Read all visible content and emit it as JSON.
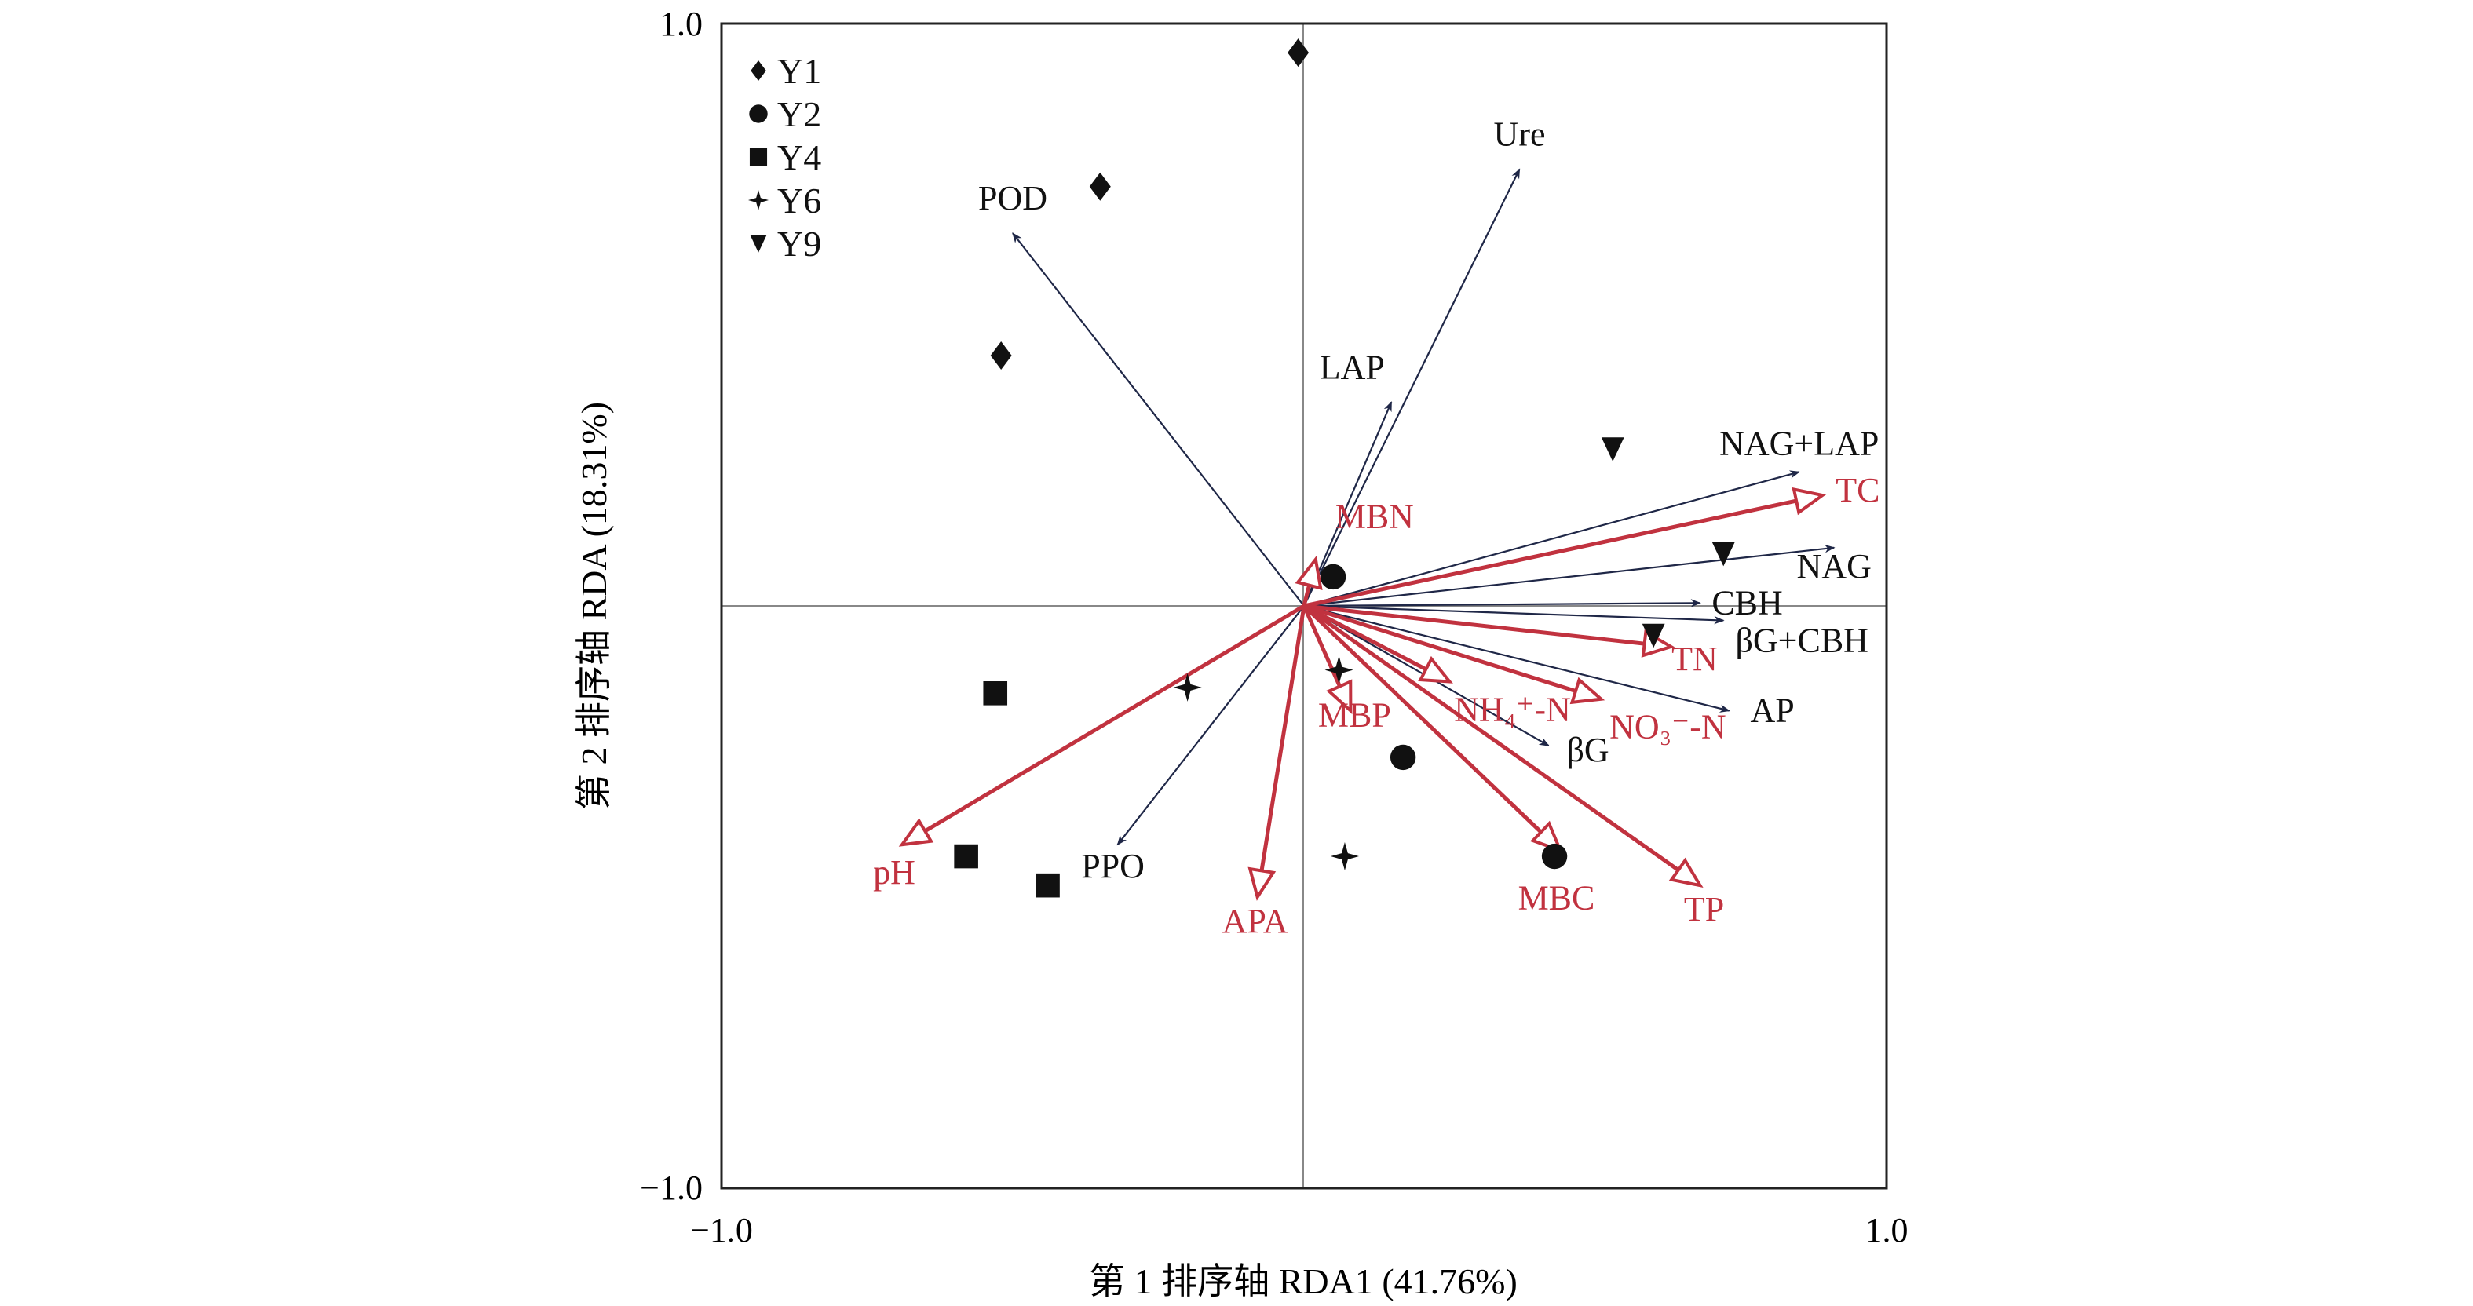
{
  "chart_data": {
    "type": "scatter",
    "title": "",
    "xlabel": "第 1 排序轴 RDA1 (41.76%)",
    "ylabel": "第 2 排序轴 RDA (18.31%)",
    "xlim": [
      -1.0,
      1.0
    ],
    "ylim": [
      -1.0,
      1.0
    ],
    "x_tick_labels": [
      "−1.0",
      "1.0"
    ],
    "y_tick_labels": [
      "1.0",
      "−1.0"
    ],
    "grid": false,
    "legend_position": "top-left",
    "colors": {
      "response": "#1f2747",
      "explanatory": "#c1323f",
      "points": "#111111",
      "axis": "#888888"
    },
    "series": [
      {
        "name": "Y1",
        "marker": "diamond",
        "points": [
          [
            -0.01,
            0.95
          ],
          [
            -0.35,
            0.72
          ],
          [
            -0.52,
            0.43
          ]
        ]
      },
      {
        "name": "Y2",
        "marker": "circle",
        "points": [
          [
            0.05,
            0.05
          ],
          [
            0.17,
            -0.26
          ],
          [
            0.43,
            -0.43
          ]
        ]
      },
      {
        "name": "Y4",
        "marker": "square",
        "points": [
          [
            -0.53,
            -0.15
          ],
          [
            -0.58,
            -0.43
          ],
          [
            -0.44,
            -0.48
          ]
        ]
      },
      {
        "name": "Y6",
        "marker": "star4",
        "points": [
          [
            -0.2,
            -0.14
          ],
          [
            0.06,
            -0.11
          ],
          [
            0.07,
            -0.43
          ]
        ]
      },
      {
        "name": "Y9",
        "marker": "triangle-down",
        "points": [
          [
            0.53,
            0.27
          ],
          [
            0.72,
            0.09
          ],
          [
            0.6,
            -0.05
          ]
        ]
      }
    ],
    "response_vectors": [
      {
        "label": "POD",
        "x": -0.5,
        "y": 0.64
      },
      {
        "label": "Ure",
        "x": 0.37,
        "y": 0.75
      },
      {
        "label": "LAP",
        "x": 0.15,
        "y": 0.35
      },
      {
        "label": "NAG+LAP",
        "x": 0.85,
        "y": 0.23
      },
      {
        "label": "NAG",
        "x": 0.91,
        "y": 0.1
      },
      {
        "label": "CBH",
        "x": 0.68,
        "y": 0.005
      },
      {
        "label": "βG+CBH",
        "x": 0.72,
        "y": -0.025
      },
      {
        "label": "AP",
        "x": 0.73,
        "y": -0.18
      },
      {
        "label": "βG",
        "x": 0.42,
        "y": -0.24
      },
      {
        "label": "PPO",
        "x": -0.32,
        "y": -0.41
      }
    ],
    "explanatory_vectors": [
      {
        "label": "TC",
        "x": 0.89,
        "y": 0.19
      },
      {
        "label": "MBN",
        "x": 0.02,
        "y": 0.08
      },
      {
        "label": "TN",
        "x": 0.63,
        "y": -0.07
      },
      {
        "label": "NH₄⁺-N",
        "x": 0.25,
        "y": -0.13
      },
      {
        "label": "NO₃⁻-N",
        "x": 0.51,
        "y": -0.16
      },
      {
        "label": "MBP",
        "x": 0.08,
        "y": -0.18
      },
      {
        "label": "MBC",
        "x": 0.44,
        "y": -0.42
      },
      {
        "label": "TP",
        "x": 0.68,
        "y": -0.48
      },
      {
        "label": "APA",
        "x": -0.08,
        "y": -0.5
      },
      {
        "label": "pH",
        "x": -0.69,
        "y": -0.41
      }
    ]
  }
}
